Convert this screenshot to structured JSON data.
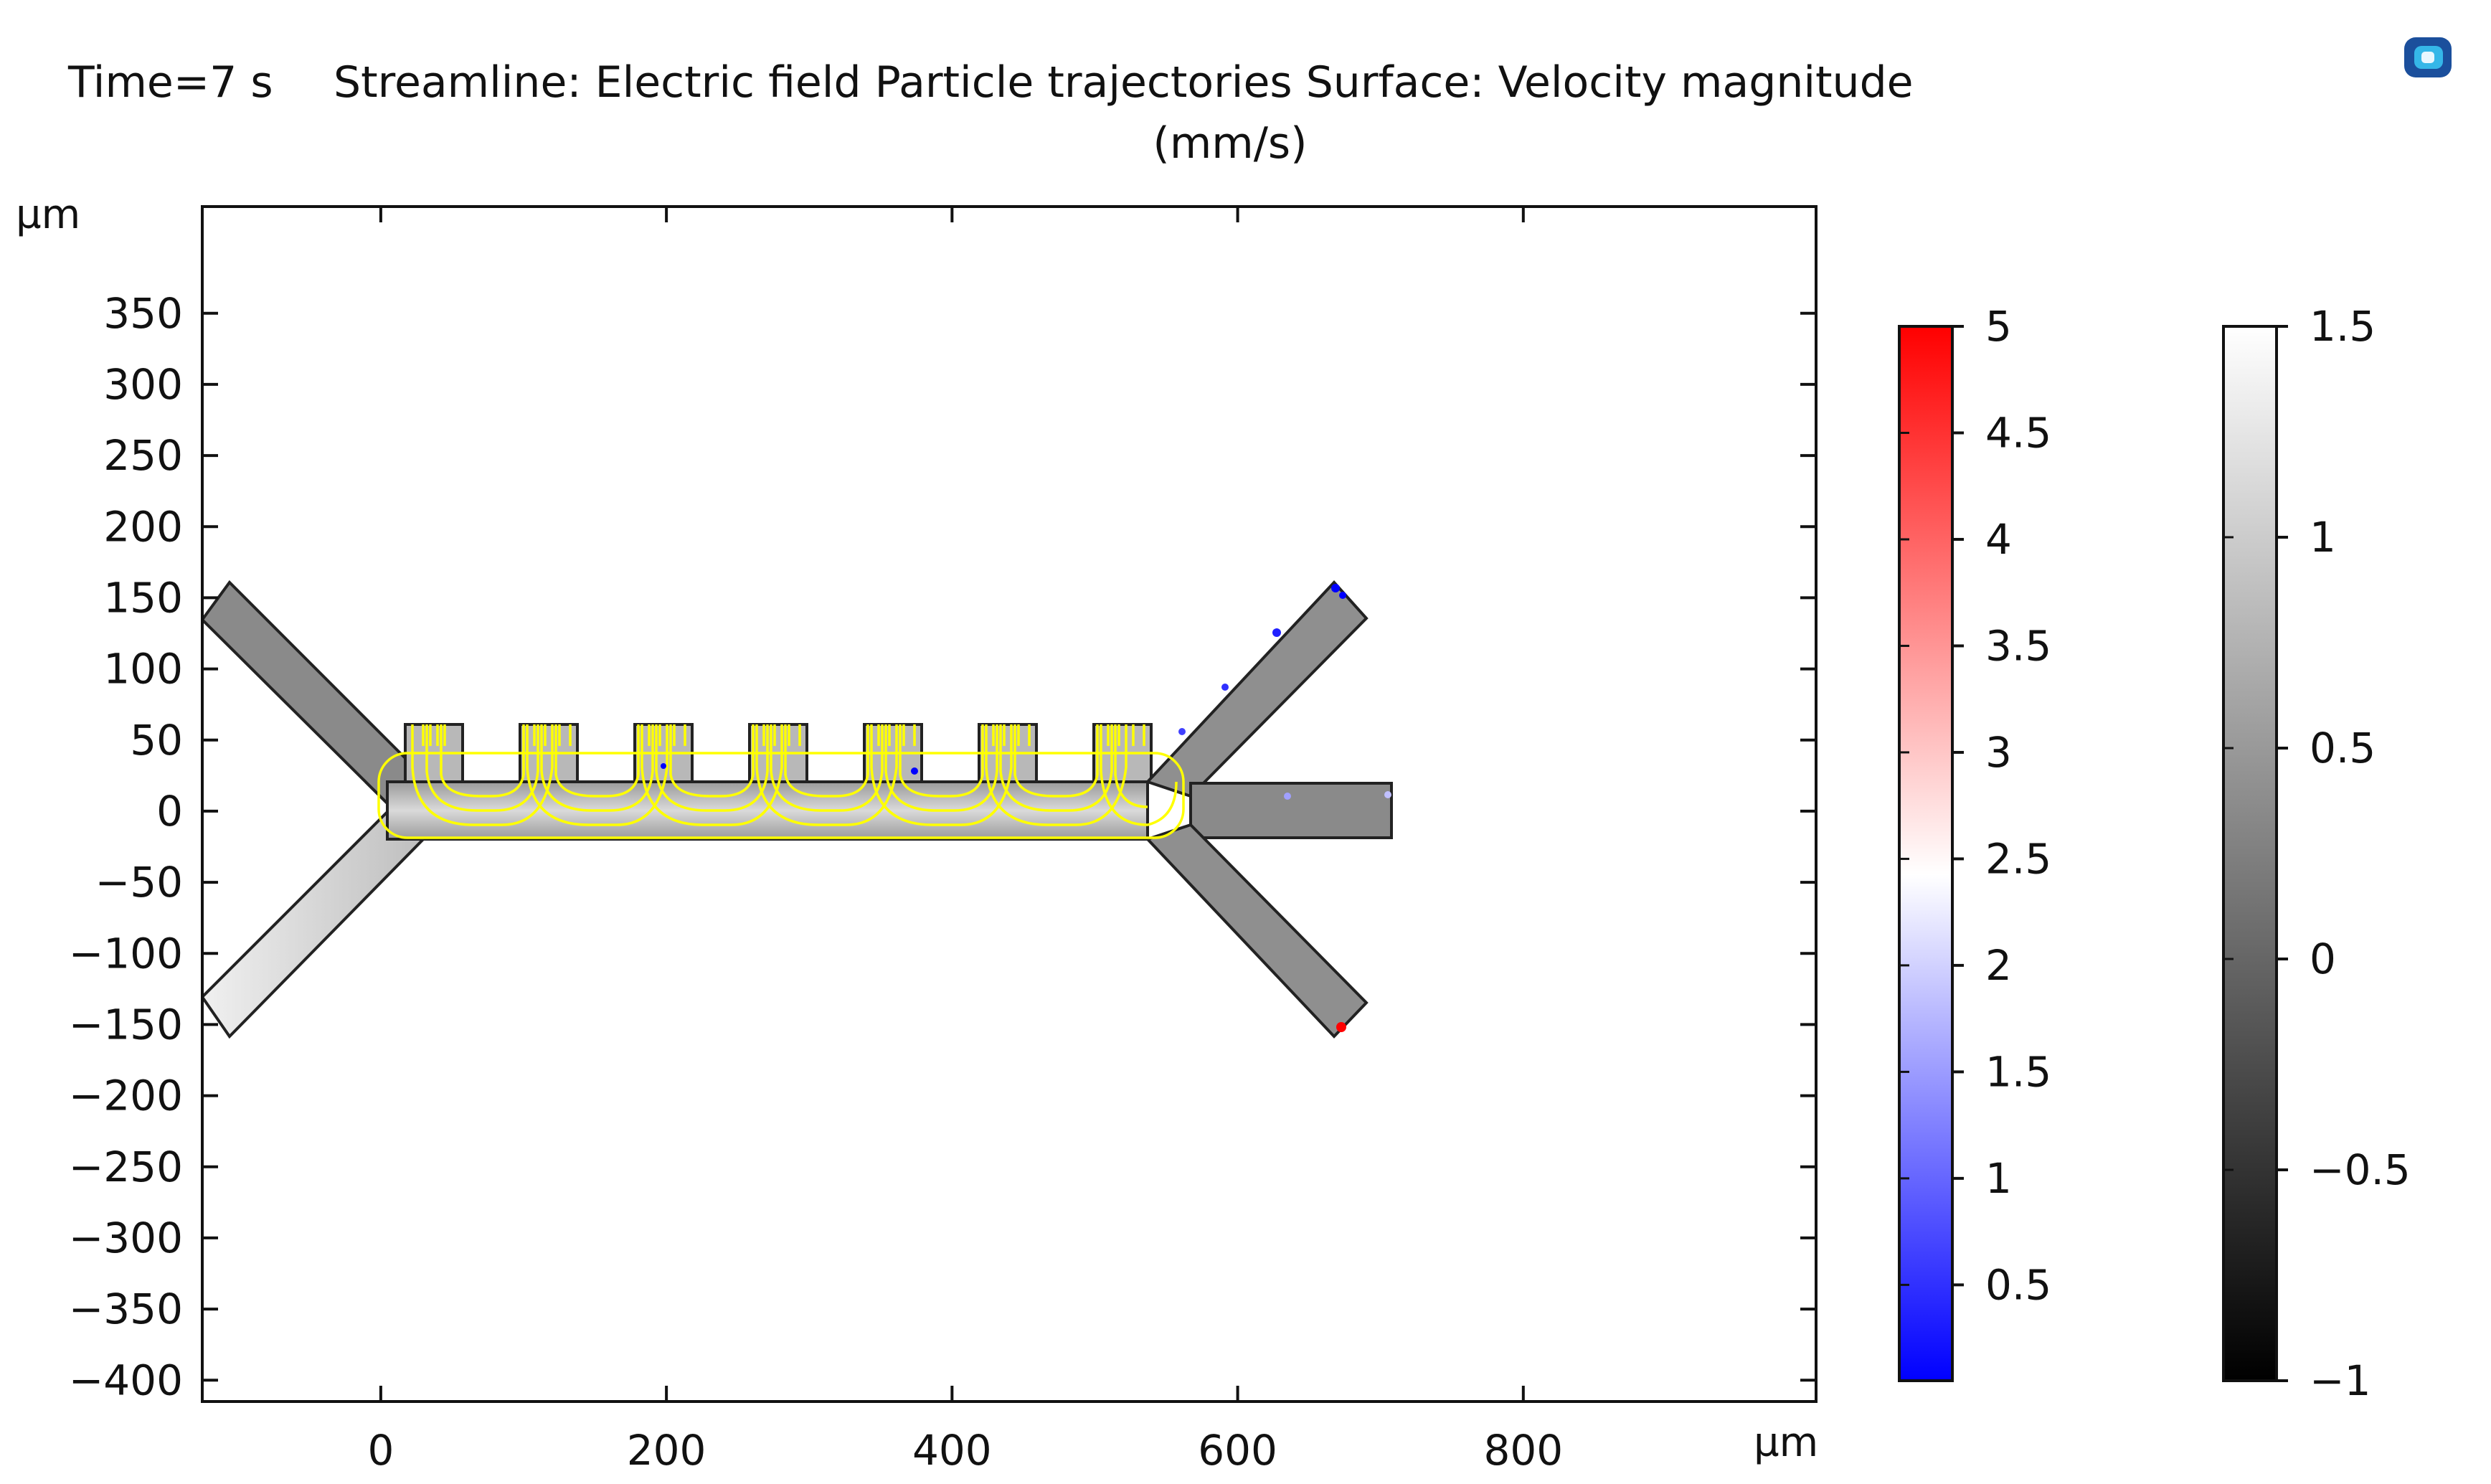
{
  "header": {
    "time_label": "Time=7 s",
    "title_line1": "Streamline: Electric field Particle trajectories  Surface: Velocity magnitude",
    "title_line2": "(mm/s)"
  },
  "logo": {
    "icon": "comsol-logo-icon"
  },
  "axes": {
    "x_unit": "µm",
    "y_unit": "µm",
    "x_ticks": [
      "0",
      "200",
      "400",
      "600",
      "800"
    ],
    "x_tick_values": [
      0,
      200,
      400,
      600,
      800
    ],
    "y_ticks": [
      "350",
      "300",
      "250",
      "200",
      "150",
      "100",
      "50",
      "0",
      "−50",
      "−100",
      "−150",
      "−200",
      "−250",
      "−300",
      "−350",
      "−400"
    ],
    "y_tick_values": [
      350,
      300,
      250,
      200,
      150,
      100,
      50,
      0,
      -50,
      -100,
      -150,
      -200,
      -250,
      -300,
      -350,
      -400
    ],
    "x_range": [
      -125,
      1005
    ],
    "y_range": [
      -415,
      425
    ]
  },
  "colorbars": [
    {
      "name": "particle-colorbar",
      "colormap": "blue-white-red",
      "colors": [
        "#0000ff",
        "#ffffff",
        "#ff0000"
      ],
      "range": [
        0.05,
        5
      ],
      "tick_labels": [
        "5",
        "4.5",
        "4",
        "3.5",
        "3",
        "2.5",
        "2",
        "1.5",
        "1",
        "0.5"
      ],
      "tick_values": [
        5,
        4.5,
        4,
        3.5,
        3,
        2.5,
        2,
        1.5,
        1,
        0.5
      ]
    },
    {
      "name": "velocity-colorbar",
      "colormap": "grayscale",
      "colors": [
        "#000000",
        "#ffffff"
      ],
      "range": [
        -1,
        1.5
      ],
      "tick_labels": [
        "1.5",
        "1",
        "0.5",
        "0",
        "−0.5",
        "−1"
      ],
      "tick_values": [
        1.5,
        1,
        0.5,
        0,
        -0.5,
        -1
      ]
    }
  ],
  "geometry": {
    "channel_color": "#8a8a8a",
    "inlet_color": "#dcdcdc",
    "streamline_color": "#ffff00",
    "electrode_count": 7
  }
}
